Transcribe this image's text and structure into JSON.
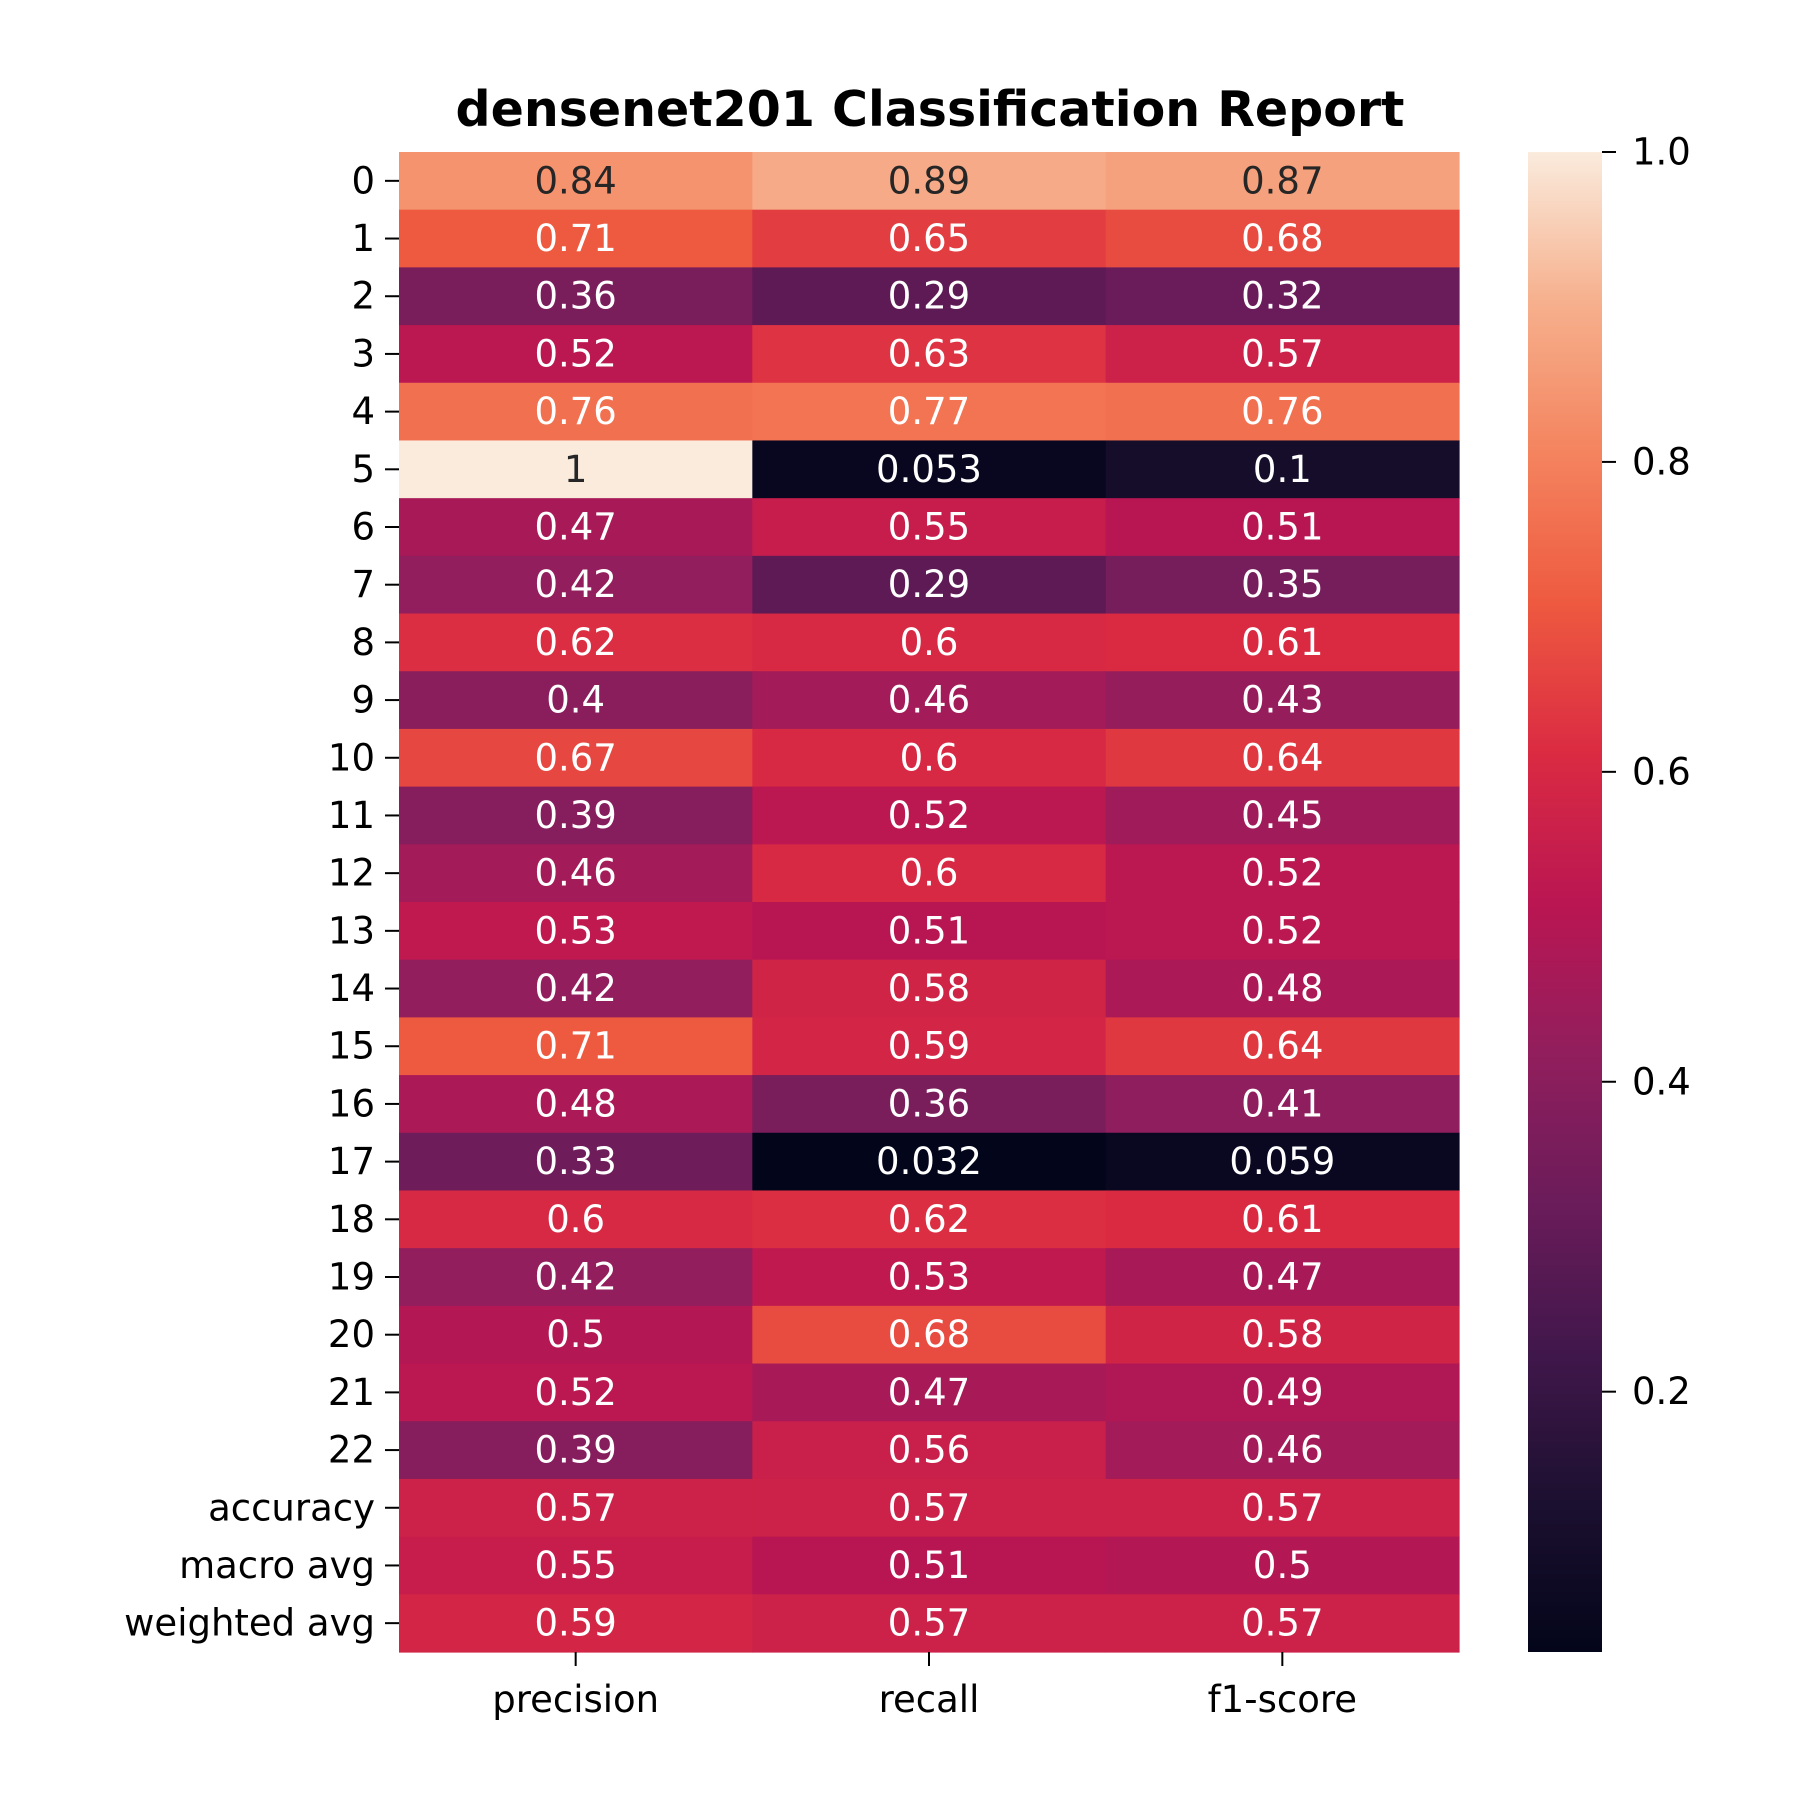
{
  "chart_data": {
    "type": "heatmap",
    "title": "densenet201 Classification Report",
    "xlabel": "",
    "ylabel": "",
    "columns": [
      "precision",
      "recall",
      "f1-score"
    ],
    "rows": [
      "0",
      "1",
      "2",
      "3",
      "4",
      "5",
      "6",
      "7",
      "8",
      "9",
      "10",
      "11",
      "12",
      "13",
      "14",
      "15",
      "16",
      "17",
      "18",
      "19",
      "20",
      "21",
      "22",
      "accuracy",
      "macro avg",
      "weighted avg"
    ],
    "values": [
      [
        0.84,
        0.89,
        0.87
      ],
      [
        0.71,
        0.65,
        0.68
      ],
      [
        0.36,
        0.29,
        0.32
      ],
      [
        0.52,
        0.63,
        0.57
      ],
      [
        0.76,
        0.77,
        0.76
      ],
      [
        1,
        0.053,
        0.1
      ],
      [
        0.47,
        0.55,
        0.51
      ],
      [
        0.42,
        0.29,
        0.35
      ],
      [
        0.62,
        0.6,
        0.61
      ],
      [
        0.4,
        0.46,
        0.43
      ],
      [
        0.67,
        0.6,
        0.64
      ],
      [
        0.39,
        0.52,
        0.45
      ],
      [
        0.46,
        0.6,
        0.52
      ],
      [
        0.53,
        0.51,
        0.52
      ],
      [
        0.42,
        0.58,
        0.48
      ],
      [
        0.71,
        0.59,
        0.64
      ],
      [
        0.48,
        0.36,
        0.41
      ],
      [
        0.33,
        0.032,
        0.059
      ],
      [
        0.6,
        0.62,
        0.61
      ],
      [
        0.42,
        0.53,
        0.47
      ],
      [
        0.5,
        0.68,
        0.58
      ],
      [
        0.52,
        0.47,
        0.49
      ],
      [
        0.39,
        0.56,
        0.46
      ],
      [
        0.57,
        0.57,
        0.57
      ],
      [
        0.55,
        0.51,
        0.5
      ],
      [
        0.59,
        0.57,
        0.57
      ]
    ],
    "labels": [
      [
        "0.84",
        "0.89",
        "0.87"
      ],
      [
        "0.71",
        "0.65",
        "0.68"
      ],
      [
        "0.36",
        "0.29",
        "0.32"
      ],
      [
        "0.52",
        "0.63",
        "0.57"
      ],
      [
        "0.76",
        "0.77",
        "0.76"
      ],
      [
        "1",
        "0.053",
        "0.1"
      ],
      [
        "0.47",
        "0.55",
        "0.51"
      ],
      [
        "0.42",
        "0.29",
        "0.35"
      ],
      [
        "0.62",
        "0.6",
        "0.61"
      ],
      [
        "0.4",
        "0.46",
        "0.43"
      ],
      [
        "0.67",
        "0.6",
        "0.64"
      ],
      [
        "0.39",
        "0.52",
        "0.45"
      ],
      [
        "0.46",
        "0.6",
        "0.52"
      ],
      [
        "0.53",
        "0.51",
        "0.52"
      ],
      [
        "0.42",
        "0.58",
        "0.48"
      ],
      [
        "0.71",
        "0.59",
        "0.64"
      ],
      [
        "0.48",
        "0.36",
        "0.41"
      ],
      [
        "0.33",
        "0.032",
        "0.059"
      ],
      [
        "0.6",
        "0.62",
        "0.61"
      ],
      [
        "0.42",
        "0.53",
        "0.47"
      ],
      [
        "0.5",
        "0.68",
        "0.58"
      ],
      [
        "0.52",
        "0.47",
        "0.49"
      ],
      [
        "0.39",
        "0.56",
        "0.46"
      ],
      [
        "0.57",
        "0.57",
        "0.57"
      ],
      [
        "0.55",
        "0.51",
        "0.5"
      ],
      [
        "0.59",
        "0.57",
        "0.57"
      ]
    ],
    "colorscale": "rocket",
    "color_range": [
      0.032,
      1.0
    ],
    "colorbar_ticks": [
      0.2,
      0.4,
      0.6,
      0.8,
      1.0
    ],
    "colorbar_tick_labels": [
      "0.2",
      "0.4",
      "0.6",
      "0.8",
      "1.0"
    ],
    "colorbar_placement": "right",
    "grid": false
  }
}
